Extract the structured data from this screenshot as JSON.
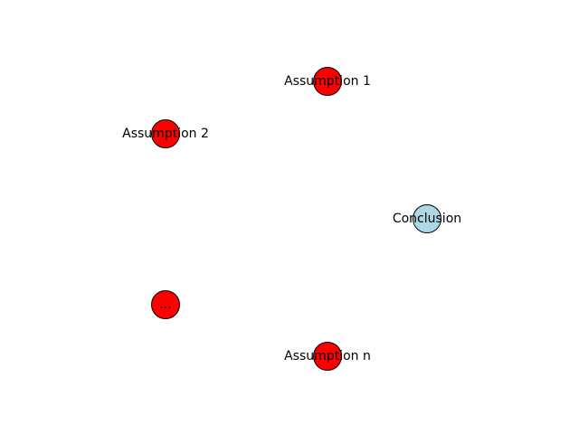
{
  "diagram": {
    "nodes": [
      {
        "id": "assumption-1",
        "label": "Assumption 1",
        "color": "#ff0000"
      },
      {
        "id": "assumption-2",
        "label": "Assumption 2",
        "color": "#ff0000"
      },
      {
        "id": "conclusion",
        "label": "Conclusion",
        "color": "#add8e6"
      },
      {
        "id": "ellipsis",
        "label": "...",
        "color": "#ff0000"
      },
      {
        "id": "assumption-n",
        "label": "Assumption n",
        "color": "#ff0000"
      }
    ],
    "node_border_color": "#000000",
    "background_color": "#ffffff"
  }
}
